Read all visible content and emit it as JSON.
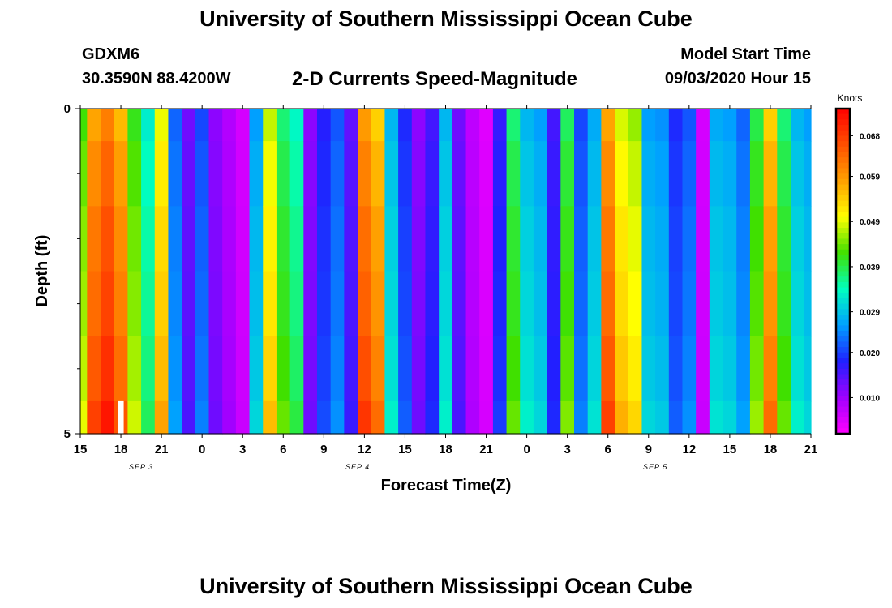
{
  "header": {
    "title": "University of Southern Mississippi Ocean Cube",
    "station_id": "GDXM6",
    "station_coords": "30.3590N 88.4200W",
    "plot_title": "2-D Currents Speed-Magnitude",
    "model_label": "Model Start Time",
    "model_time": "09/03/2020 Hour 15"
  },
  "footer": {
    "title": "University of Southern Mississippi Ocean Cube"
  },
  "colors": {
    "scale": [
      "#ff00ff",
      "#a000ff",
      "#2020ff",
      "#00a0ff",
      "#00ffc0",
      "#40e000",
      "#ffff00",
      "#ffa000",
      "#ff5000",
      "#ff0000"
    ]
  },
  "chart_data": {
    "type": "heatmap",
    "xlabel": "Forecast Time(Z)",
    "ylabel": "Depth (ft)",
    "colorbar_label": "Knots",
    "colorbar_ticks": [
      "0.068",
      "0.059",
      "0.049",
      "0.039",
      "0.029",
      "0.020",
      "0.010"
    ],
    "colorbar_tick_values": [
      0.068,
      0.059,
      0.049,
      0.039,
      0.029,
      0.02,
      0.01
    ],
    "colorbar_range": [
      0.002,
      0.074
    ],
    "y_range": [
      0,
      5
    ],
    "y_tick_labels": [
      "0",
      "5"
    ],
    "y_minor_ticks": [
      1,
      2,
      3,
      4
    ],
    "x_start_hour": 15,
    "x_end_hour": 69,
    "x_tick_labels": [
      "15",
      "18",
      "21",
      "0",
      "3",
      "6",
      "9",
      "12",
      "15",
      "18",
      "21",
      "0",
      "3",
      "6",
      "9",
      "12",
      "15",
      "18",
      "21"
    ],
    "date_labels": [
      {
        "text": "SEP 3",
        "hour": 19.5
      },
      {
        "text": "SEP 4",
        "hour": 35.5
      },
      {
        "text": "SEP 5",
        "hour": 57.5
      }
    ],
    "depth_bands": [
      "0-0.5",
      "0.5-1.5",
      "1.5-2.5",
      "2.5-3.5",
      "3.5-4.5",
      "4.5-5"
    ],
    "speed_profile_by_hour": [
      0.045,
      0.062,
      0.066,
      0.06,
      0.044,
      0.035,
      0.053,
      0.024,
      0.014,
      0.022,
      0.012,
      0.009,
      0.006,
      0.028,
      0.051,
      0.04,
      0.036,
      0.012,
      0.019,
      0.023,
      0.015,
      0.063,
      0.058,
      0.03,
      0.02,
      0.012,
      0.017,
      0.03,
      0.014,
      0.008,
      0.005,
      0.018,
      0.04,
      0.03,
      0.028,
      0.017,
      0.041,
      0.022,
      0.029,
      0.062,
      0.052,
      0.049,
      0.028,
      0.027,
      0.02,
      0.023,
      0.006,
      0.029,
      0.028,
      0.024,
      0.042,
      0.058,
      0.04,
      0.03,
      0.028
    ],
    "depth_factors": [
      0.93,
      0.97,
      1.0,
      1.02,
      1.05,
      1.09
    ],
    "no_data_cells": [
      {
        "hour": 18,
        "depth_band": "4.5-5"
      }
    ]
  }
}
